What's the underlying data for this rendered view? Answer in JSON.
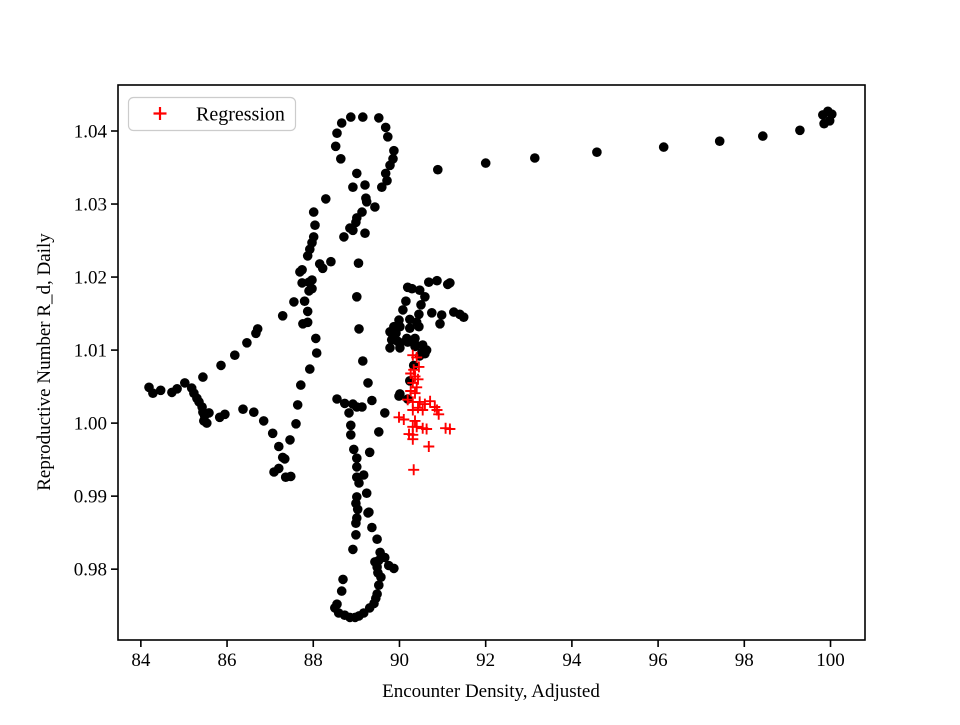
{
  "figure": {
    "background": "#ffffff"
  },
  "chart_data": {
    "type": "scatter",
    "title": "",
    "xlabel": "Encounter Density, Adjusted",
    "ylabel": "Reproductive Number R_d, Daily",
    "x_ticks": [
      "84",
      "86",
      "88",
      "90",
      "92",
      "94",
      "96",
      "98",
      "100"
    ],
    "y_ticks": [
      "0.98",
      "0.99",
      "1.00",
      "1.01",
      "1.02",
      "1.03",
      "1.04"
    ],
    "xlim": [
      83.47,
      100.8
    ],
    "ylim": [
      0.9703,
      1.0463
    ],
    "grid": false,
    "legend": {
      "position": "upper left",
      "entries": [
        "Regression"
      ]
    },
    "series": [
      {
        "marker": "circle",
        "color": "#000000",
        "in_legend": false,
        "points": [
          [
            90.89,
            1.0347
          ],
          [
            92.0,
            1.0356
          ],
          [
            93.14,
            1.0363
          ],
          [
            94.58,
            1.0371
          ],
          [
            96.13,
            1.0378
          ],
          [
            97.43,
            1.0386
          ],
          [
            98.43,
            1.0393
          ],
          [
            99.29,
            1.0401
          ],
          [
            99.82,
            1.0422
          ],
          [
            99.94,
            1.0427
          ],
          [
            100.03,
            1.0423
          ],
          [
            99.85,
            1.041
          ],
          [
            99.98,
            1.0414
          ],
          [
            88.87,
            1.0419
          ],
          [
            89.15,
            1.0419
          ],
          [
            89.52,
            1.0418
          ],
          [
            88.66,
            1.0411
          ],
          [
            89.68,
            1.0405
          ],
          [
            88.55,
            1.0397
          ],
          [
            89.73,
            1.0392
          ],
          [
            88.52,
            1.0379
          ],
          [
            89.87,
            1.0373
          ],
          [
            88.64,
            1.0362
          ],
          [
            89.85,
            1.0362
          ],
          [
            89.78,
            1.0353
          ],
          [
            89.01,
            1.0342
          ],
          [
            89.68,
            1.0342
          ],
          [
            89.71,
            1.0332
          ],
          [
            89.59,
            1.0323
          ],
          [
            88.92,
            1.0323
          ],
          [
            89.2,
            1.0326
          ],
          [
            89.22,
            1.0308
          ],
          [
            89.24,
            1.0303
          ],
          [
            89.43,
            1.0296
          ],
          [
            89.13,
            1.0289
          ],
          [
            89.01,
            1.0281
          ],
          [
            88.99,
            1.0275
          ],
          [
            88.92,
            1.0264
          ],
          [
            89.2,
            1.026
          ],
          [
            88.85,
            1.0267
          ],
          [
            88.71,
            1.0255
          ],
          [
            89.05,
            1.0219
          ],
          [
            89.01,
            1.0173
          ],
          [
            89.06,
            1.0129
          ],
          [
            89.15,
            1.0085
          ],
          [
            88.29,
            1.0307
          ],
          [
            88.01,
            1.0289
          ],
          [
            88.04,
            1.0271
          ],
          [
            88.01,
            1.0255
          ],
          [
            87.97,
            1.0247
          ],
          [
            87.92,
            1.0238
          ],
          [
            87.87,
            1.0229
          ],
          [
            88.41,
            1.0221
          ],
          [
            88.22,
            1.0212
          ],
          [
            88.15,
            1.0218
          ],
          [
            87.97,
            1.0196
          ],
          [
            87.97,
            1.0184
          ],
          [
            87.9,
            1.0193
          ],
          [
            87.74,
            1.0192
          ],
          [
            87.9,
            1.0181
          ],
          [
            87.8,
            1.0167
          ],
          [
            87.55,
            1.0166
          ],
          [
            87.87,
            1.0153
          ],
          [
            87.69,
            1.0207
          ],
          [
            87.74,
            1.021
          ],
          [
            87.29,
            1.0147
          ],
          [
            87.87,
            1.0138
          ],
          [
            86.71,
            1.0129
          ],
          [
            86.67,
            1.0123
          ],
          [
            86.46,
            1.011
          ],
          [
            86.18,
            1.0093
          ],
          [
            85.86,
            1.0079
          ],
          [
            85.44,
            1.0063
          ],
          [
            85.02,
            1.0055
          ],
          [
            85.18,
            1.0048
          ],
          [
            84.84,
            1.0047
          ],
          [
            84.72,
            1.0042
          ],
          [
            84.46,
            1.0045
          ],
          [
            84.28,
            1.0041
          ],
          [
            84.19,
            1.0049
          ],
          [
            85.23,
            1.0041
          ],
          [
            85.3,
            1.0034
          ],
          [
            85.35,
            1.0029
          ],
          [
            85.42,
            1.0022
          ],
          [
            85.44,
            1.0015
          ],
          [
            85.48,
            1.001
          ],
          [
            85.58,
            1.0014
          ],
          [
            85.46,
            1.0003
          ],
          [
            85.53,
            1.0
          ],
          [
            85.83,
            1.0008
          ],
          [
            85.95,
            1.0012
          ],
          [
            86.37,
            1.0019
          ],
          [
            86.62,
            1.0015
          ],
          [
            86.85,
            1.0003
          ],
          [
            87.06,
            0.9986
          ],
          [
            87.2,
            0.9968
          ],
          [
            87.46,
            0.9977
          ],
          [
            87.29,
            0.9953
          ],
          [
            87.34,
            0.9951
          ],
          [
            87.09,
            0.9933
          ],
          [
            87.2,
            0.9938
          ],
          [
            87.36,
            0.9926
          ],
          [
            87.48,
            0.9927
          ],
          [
            87.76,
            1.0136
          ],
          [
            88.06,
            1.0116
          ],
          [
            88.08,
            1.0096
          ],
          [
            87.92,
            1.0074
          ],
          [
            87.71,
            1.0052
          ],
          [
            87.64,
            1.0025
          ],
          [
            87.6,
            0.9999
          ],
          [
            89.27,
            1.0055
          ],
          [
            88.55,
            1.0033
          ],
          [
            88.73,
            1.0027
          ],
          [
            88.92,
            1.0026
          ],
          [
            89.01,
            1.0022
          ],
          [
            89.13,
            1.0022
          ],
          [
            89.36,
            1.0031
          ],
          [
            88.83,
            1.0014
          ],
          [
            88.87,
            0.9997
          ],
          [
            88.87,
            0.9984
          ],
          [
            88.94,
            0.9964
          ],
          [
            89.31,
            0.996
          ],
          [
            89.01,
            0.9952
          ],
          [
            89.17,
            0.9929
          ],
          [
            89.01,
            0.994
          ],
          [
            89.01,
            0.9926
          ],
          [
            89.06,
            0.9918
          ],
          [
            89.24,
            0.9904
          ],
          [
            89.01,
            0.9899
          ],
          [
            89.03,
            0.9882
          ],
          [
            89.29,
            0.9878
          ],
          [
            89.01,
            0.987
          ],
          [
            90.01,
            1.004
          ],
          [
            89.66,
            1.0014
          ],
          [
            89.52,
            0.9988
          ],
          [
            88.99,
            0.989
          ],
          [
            89.27,
            0.9877
          ],
          [
            88.99,
            0.9863
          ],
          [
            89.36,
            0.9857
          ],
          [
            88.99,
            0.9847
          ],
          [
            89.48,
            0.9841
          ],
          [
            88.92,
            0.9827
          ],
          [
            89.55,
            0.9823
          ],
          [
            89.66,
            0.9816
          ],
          [
            89.52,
            0.9812
          ],
          [
            89.43,
            0.981
          ],
          [
            89.48,
            0.9803
          ],
          [
            89.75,
            0.9805
          ],
          [
            89.87,
            0.9801
          ],
          [
            89.5,
            0.9795
          ],
          [
            89.57,
            0.9789
          ],
          [
            88.69,
            0.9786
          ],
          [
            89.52,
            0.9778
          ],
          [
            88.66,
            0.977
          ],
          [
            89.48,
            0.9766
          ],
          [
            89.45,
            0.976
          ],
          [
            88.55,
            0.9752
          ],
          [
            88.5,
            0.9747
          ],
          [
            89.41,
            0.9753
          ],
          [
            89.31,
            0.9747
          ],
          [
            88.59,
            0.974
          ],
          [
            88.73,
            0.9737
          ],
          [
            88.85,
            0.9734
          ],
          [
            88.97,
            0.9734
          ],
          [
            89.06,
            0.9736
          ],
          [
            89.17,
            0.974
          ],
          [
            90.68,
            1.0193
          ],
          [
            90.87,
            1.0195
          ],
          [
            91.12,
            1.019
          ],
          [
            90.47,
            1.0182
          ],
          [
            90.29,
            1.0184
          ],
          [
            90.59,
            1.0173
          ],
          [
            90.15,
            1.0167
          ],
          [
            90.5,
            1.0162
          ],
          [
            90.08,
            1.0155
          ],
          [
            90.45,
            1.0149
          ],
          [
            90.75,
            1.0151
          ],
          [
            90.98,
            1.0148
          ],
          [
            91.26,
            1.0152
          ],
          [
            91.4,
            1.0149
          ],
          [
            91.49,
            1.0145
          ],
          [
            90.4,
            1.0138
          ],
          [
            90.24,
            1.0142
          ],
          [
            89.99,
            1.0141
          ],
          [
            89.87,
            1.0132
          ],
          [
            90.01,
            1.0132
          ],
          [
            89.78,
            1.0125
          ],
          [
            89.92,
            1.0123
          ],
          [
            90.24,
            1.013
          ],
          [
            90.45,
            1.0132
          ],
          [
            90.94,
            1.0136
          ],
          [
            89.82,
            1.0114
          ],
          [
            89.96,
            1.0112
          ],
          [
            90.17,
            1.0116
          ],
          [
            90.36,
            1.0116
          ],
          [
            89.78,
            1.0103
          ],
          [
            90.01,
            1.0103
          ],
          [
            90.36,
            1.0105
          ],
          [
            90.54,
            1.0107
          ],
          [
            90.63,
            1.01
          ],
          [
            90.47,
            1.0092
          ],
          [
            90.59,
            1.0095
          ],
          [
            90.33,
            1.0079
          ],
          [
            90.24,
            1.0058
          ],
          [
            90.19,
            1.0186
          ],
          [
            91.17,
            1.0192
          ],
          [
            90.01,
            1.011
          ],
          [
            90.19,
            1.0111
          ],
          [
            90.36,
            1.0108
          ],
          [
            90.52,
            1.0097
          ],
          [
            89.99,
            1.0037
          ],
          [
            90.19,
            1.0033
          ]
        ]
      },
      {
        "name": "Regression",
        "marker": "plus",
        "color": "#ff0000",
        "in_legend": true,
        "points": [
          [
            90.31,
            1.0093
          ],
          [
            90.4,
            1.009
          ],
          [
            90.45,
            1.0077
          ],
          [
            90.33,
            1.0073
          ],
          [
            90.26,
            1.0068
          ],
          [
            90.36,
            1.0064
          ],
          [
            90.43,
            1.006
          ],
          [
            90.31,
            1.0055
          ],
          [
            90.4,
            1.0049
          ],
          [
            90.26,
            1.0044
          ],
          [
            90.36,
            1.0041
          ],
          [
            90.19,
            1.0032
          ],
          [
            90.31,
            1.0029
          ],
          [
            90.47,
            1.0029
          ],
          [
            90.59,
            1.0026
          ],
          [
            90.71,
            1.003
          ],
          [
            90.82,
            1.0022
          ],
          [
            90.87,
            1.0018
          ],
          [
            90.43,
            1.0021
          ],
          [
            90.31,
            1.0018
          ],
          [
            90.54,
            1.0018
          ],
          [
            90.91,
            1.0012
          ],
          [
            89.99,
            1.0008
          ],
          [
            90.1,
            1.0005
          ],
          [
            90.36,
            1.0003
          ],
          [
            90.31,
            0.9995
          ],
          [
            90.4,
            0.9995
          ],
          [
            90.54,
            0.9993
          ],
          [
            90.63,
            0.9992
          ],
          [
            90.22,
            0.9985
          ],
          [
            90.31,
            0.9984
          ],
          [
            91.07,
            0.9993
          ],
          [
            91.17,
            0.9992
          ],
          [
            90.31,
            0.9978
          ],
          [
            90.68,
            0.9968
          ],
          [
            90.33,
            0.9936
          ]
        ]
      }
    ]
  }
}
